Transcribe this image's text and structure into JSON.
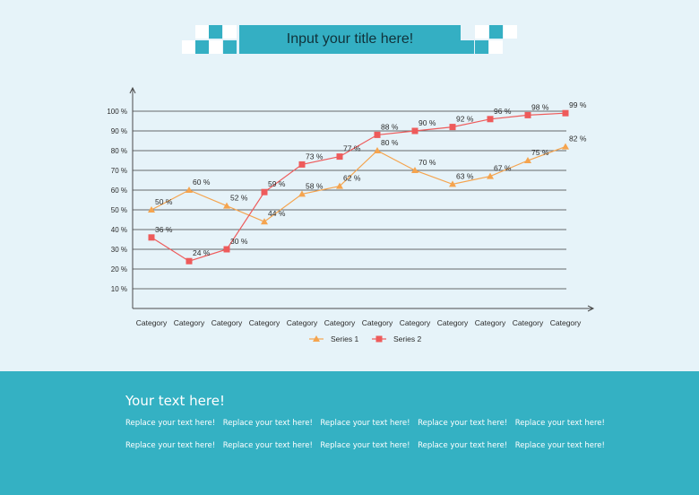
{
  "header": {
    "title": "Input your title here!"
  },
  "colors": {
    "background": "#e6f3f9",
    "accent": "#34afc3",
    "series1": "#f5a44e",
    "series2": "#ee5b5b",
    "text": "#2b2b2b"
  },
  "chart_data": {
    "type": "line",
    "categories": [
      "Category",
      "Category",
      "Category",
      "Category",
      "Category",
      "Category",
      "Category",
      "Category",
      "Category",
      "Category",
      "Category",
      "Category"
    ],
    "series": [
      {
        "name": "Series 1",
        "marker": "triangle",
        "color": "#f5a44e",
        "values": [
          50,
          60,
          52,
          44,
          58,
          62,
          80,
          70,
          63,
          67,
          75,
          82
        ]
      },
      {
        "name": "Series 2",
        "marker": "square",
        "color": "#ee5b5b",
        "values": [
          36,
          24,
          30,
          59,
          73,
          77,
          88,
          90,
          92,
          96,
          98,
          99
        ]
      }
    ],
    "yticks": [
      "10 %",
      "20 %",
      "30 %",
      "40 %",
      "50 %",
      "60 %",
      "70 %",
      "80 %",
      "90 %",
      "100 %"
    ],
    "value_suffix": "%",
    "ylim": [
      0,
      100
    ],
    "grid": true,
    "legend": "bottom"
  },
  "footer": {
    "title": "Your text here!",
    "rows": [
      [
        "Replace your text here!",
        "Replace your text here!",
        "Replace your text here!",
        "Replace your text here!",
        "Replace your text here!"
      ],
      [
        "Replace your text here!",
        "Replace your text here!",
        "Replace your text here!",
        "Replace your text here!",
        "Replace your text here!"
      ]
    ]
  }
}
